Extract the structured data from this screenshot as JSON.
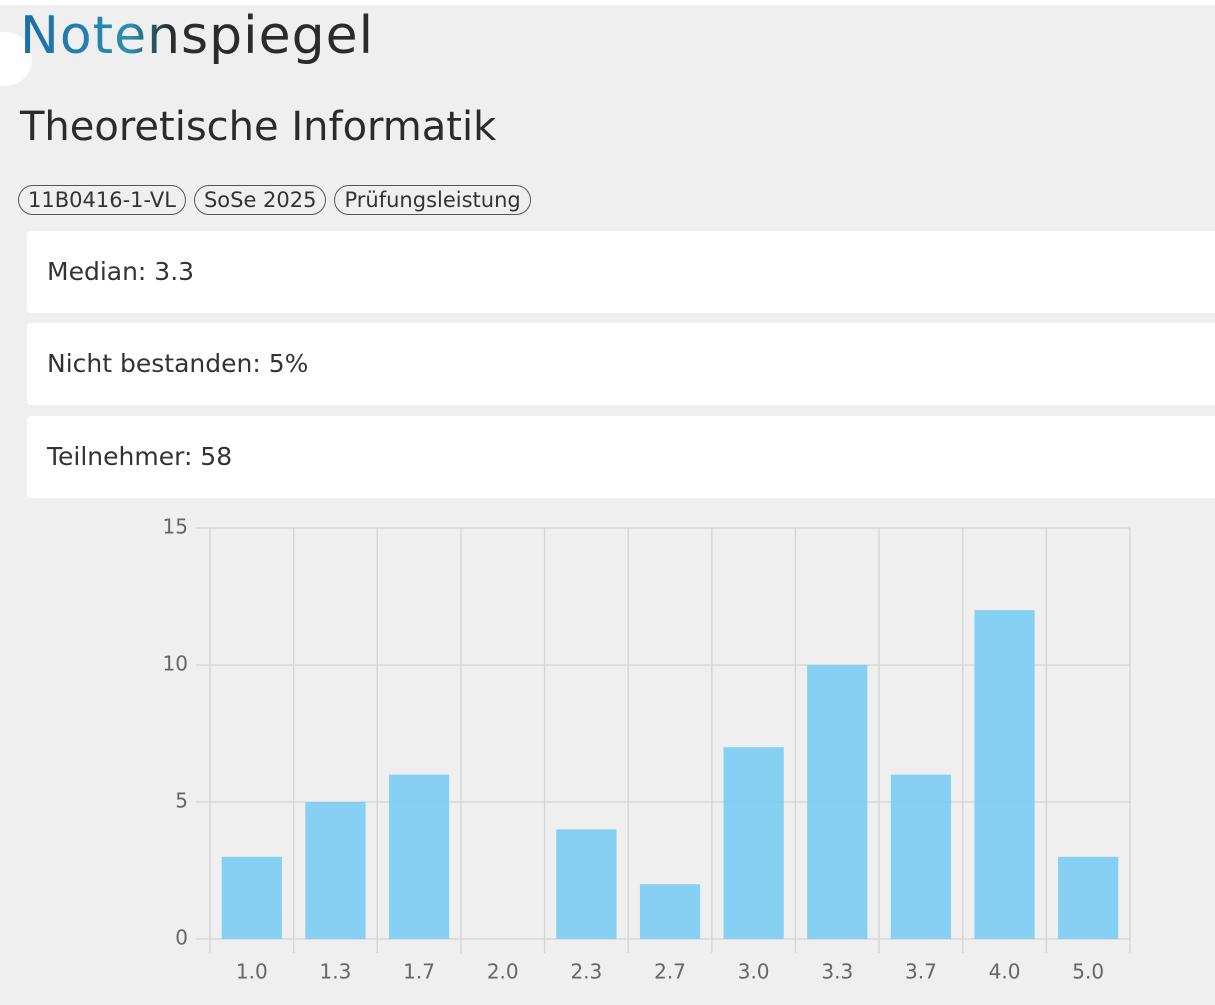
{
  "header": {
    "title": "Notenspiegel",
    "subtitle": "Theoretische Informatik"
  },
  "chips": [
    "11B0416-1-VL",
    "SoSe 2025",
    "Prüfungsleistung"
  ],
  "cards": [
    "Median: 3.3",
    "Nicht bestanden: 5%",
    "Teilnehmer: 58"
  ],
  "chart_data": {
    "type": "bar",
    "categories": [
      "1.0",
      "1.3",
      "1.7",
      "2.0",
      "2.3",
      "2.7",
      "3.0",
      "3.3",
      "3.7",
      "4.0",
      "5.0"
    ],
    "values": [
      3,
      5,
      6,
      0,
      4,
      2,
      7,
      10,
      6,
      12,
      3
    ],
    "color": "#7ecdf2",
    "ylim": [
      0,
      15
    ],
    "yticks": [
      0,
      5,
      10,
      15
    ],
    "grid": true
  }
}
